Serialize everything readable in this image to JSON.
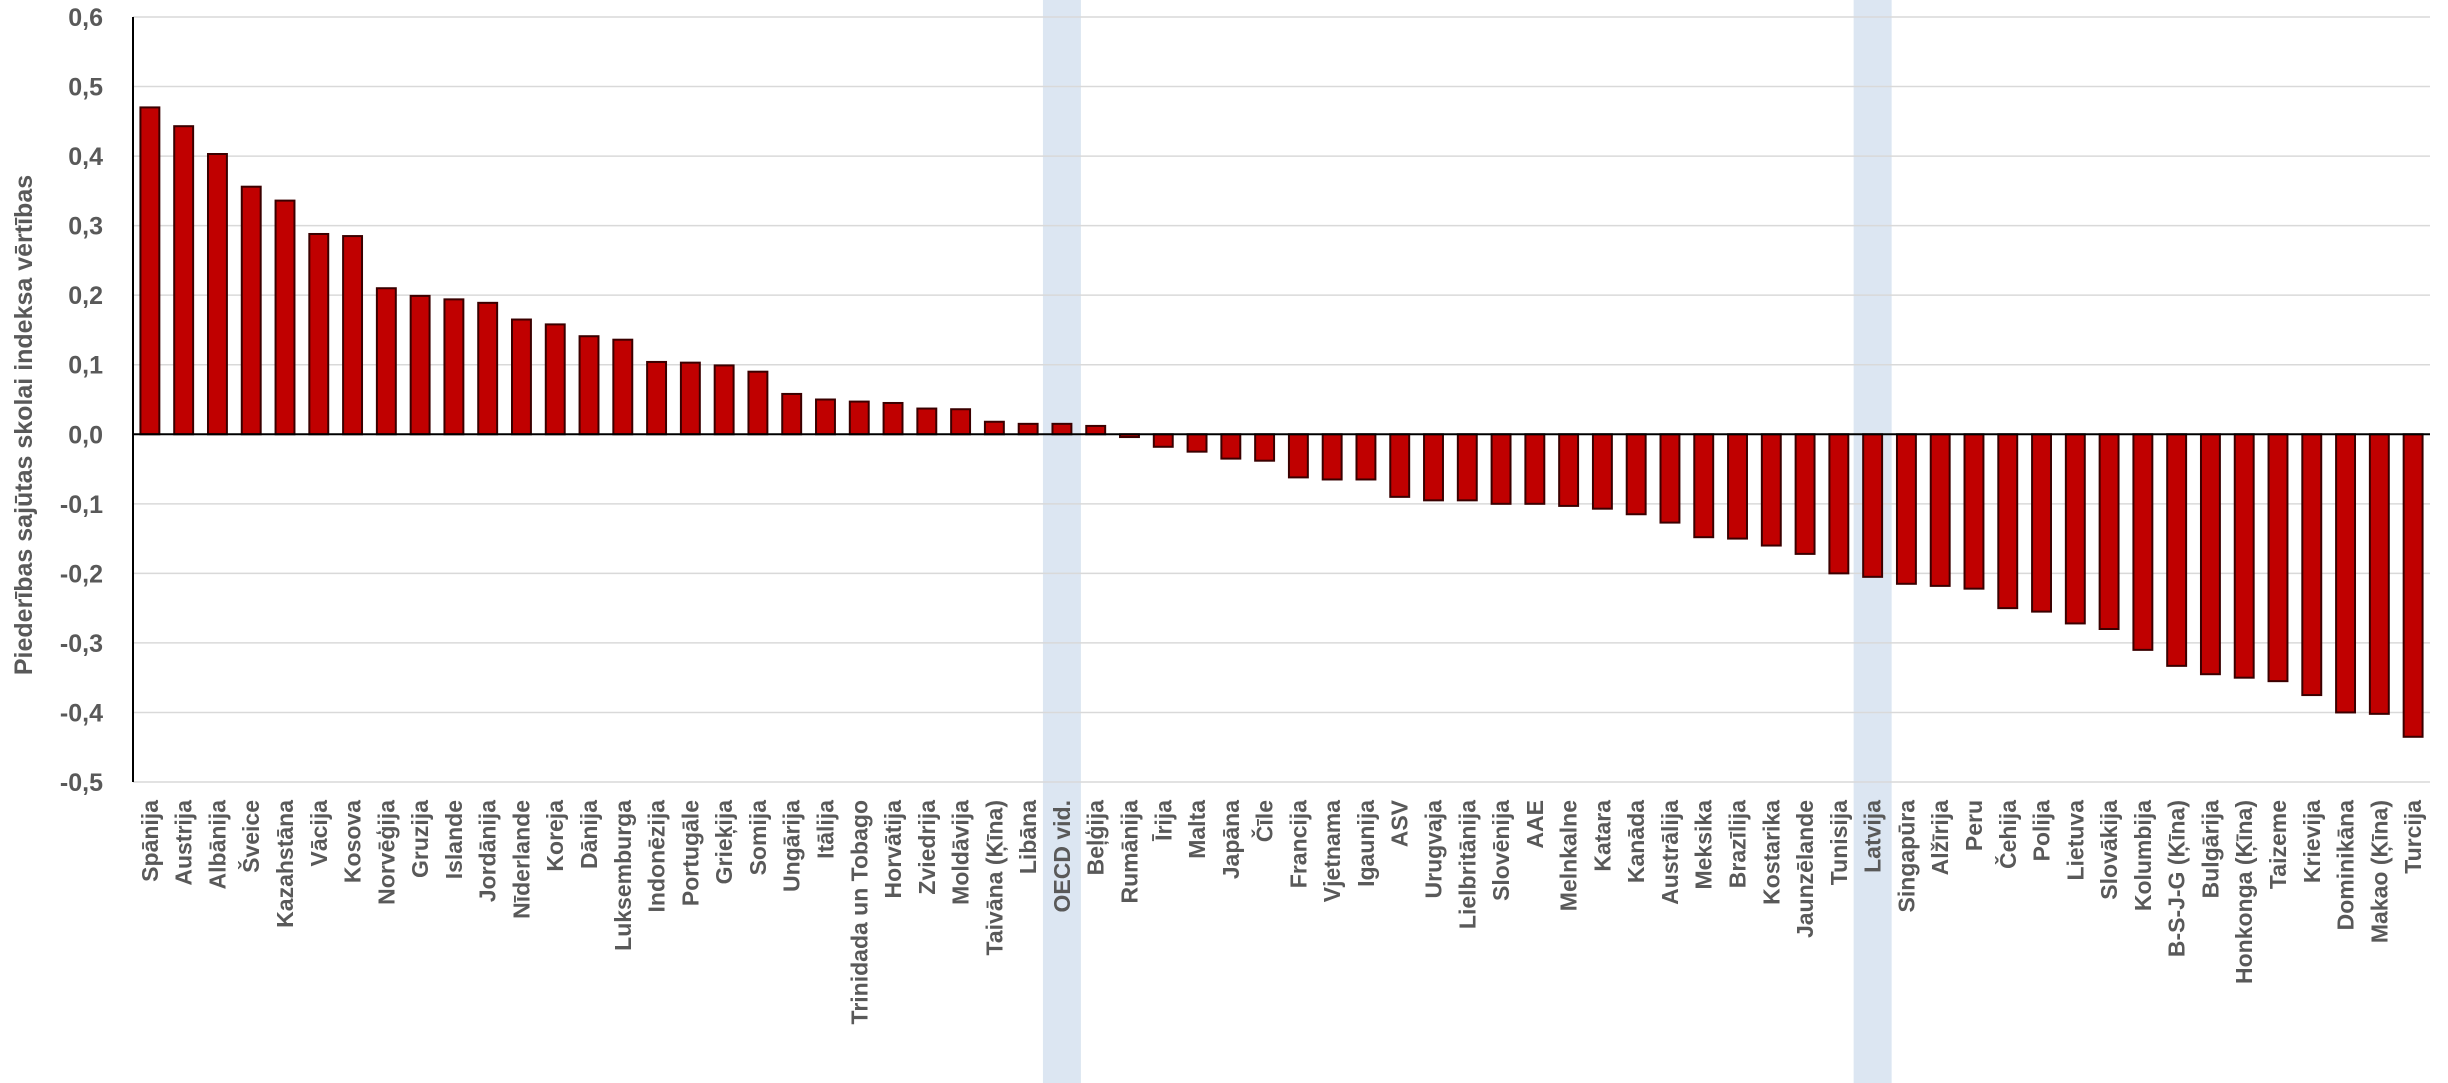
{
  "chart_data": {
    "type": "bar",
    "title": "",
    "xlabel": "",
    "ylabel": "Piederības sajūtas skolai indeksa vērtības",
    "ylim": [
      -0.5,
      0.6
    ],
    "yticks": [
      "0,6",
      "0,5",
      "0,4",
      "0,3",
      "0,2",
      "0,1",
      "0,0",
      "-0,1",
      "-0,2",
      "-0,3",
      "-0,4",
      "-0,5"
    ],
    "grid": true,
    "legend": "none",
    "bar_color": "#C00000",
    "highlight_color": "#DCE6F2",
    "highlighted": [
      "OECD vid.",
      "Latvija"
    ],
    "categories": [
      "Spānija",
      "Austrija",
      "Albānija",
      "Šveice",
      "Kazahstāna",
      "Vācija",
      "Kosova",
      "Norvēģija",
      "Gruzija",
      "Islande",
      "Jordānija",
      "Nīderlande",
      "Koreja",
      "Dānija",
      "Luksemburga",
      "Indonēzija",
      "Portugāle",
      "Grieķija",
      "Somija",
      "Ungārija",
      "Itālija",
      "Trinidada un Tobago",
      "Horvātija",
      "Zviedrija",
      "Moldāvija",
      "Taivāna (Ķīna)",
      "Libāna",
      "OECD vid.",
      "Beļģija",
      "Rumānija",
      "Īrija",
      "Malta",
      "Japāna",
      "Čīle",
      "Francija",
      "Vjetnama",
      "Igaunija",
      "ASV",
      "Urugvaja",
      "Lielbritānija",
      "Slovēnija",
      "AAE",
      "Melnkalne",
      "Katara",
      "Kanāda",
      "Austrālija",
      "Meksika",
      "Brazīlija",
      "Kostarika",
      "Jaunzēlande",
      "Tunisija",
      "Latvija",
      "Singapūra",
      "Alžīrija",
      "Peru",
      "Čehija",
      "Polija",
      "Lietuva",
      "Slovākija",
      "Kolumbija",
      "B-S-J-G (Ķīna)",
      "Bulgārija",
      "Honkonga (Ķīna)",
      "Taizeme",
      "Krievija",
      "Dominikāna",
      "Makao (Ķīna)",
      "Turcija"
    ],
    "values": [
      0.47,
      0.443,
      0.403,
      0.356,
      0.336,
      0.288,
      0.285,
      0.21,
      0.199,
      0.194,
      0.189,
      0.165,
      0.158,
      0.141,
      0.136,
      0.104,
      0.103,
      0.099,
      0.09,
      0.058,
      0.05,
      0.047,
      0.045,
      0.037,
      0.036,
      0.018,
      0.015,
      0.015,
      0.012,
      -0.004,
      -0.018,
      -0.025,
      -0.035,
      -0.038,
      -0.062,
      -0.065,
      -0.065,
      -0.09,
      -0.095,
      -0.095,
      -0.1,
      -0.1,
      -0.103,
      -0.107,
      -0.115,
      -0.127,
      -0.148,
      -0.15,
      -0.16,
      -0.172,
      -0.2,
      -0.205,
      -0.215,
      -0.218,
      -0.222,
      -0.25,
      -0.255,
      -0.272,
      -0.28,
      -0.31,
      -0.333,
      -0.345,
      -0.35,
      -0.355,
      -0.375,
      -0.4,
      -0.402,
      -0.435
    ]
  }
}
